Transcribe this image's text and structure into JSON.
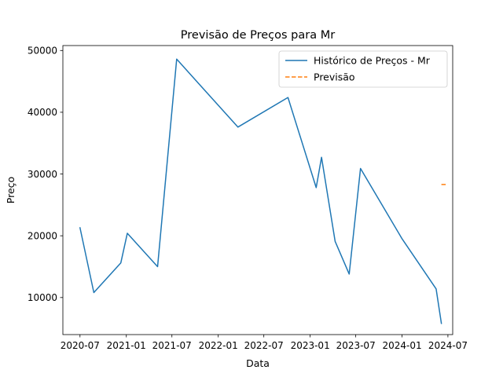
{
  "chart_data": {
    "type": "line",
    "title": "Previsão de Preços para Mr",
    "xlabel": "Data",
    "ylabel": "Preço",
    "xlim": [
      "2020-04-24",
      "2024-07-20"
    ],
    "ylim": [
      4000,
      50800
    ],
    "x_ticks": [
      "2020-07",
      "2021-01",
      "2021-07",
      "2022-01",
      "2022-07",
      "2023-01",
      "2023-07",
      "2024-01",
      "2024-07"
    ],
    "y_ticks": [
      10000,
      20000,
      30000,
      40000,
      50000
    ],
    "legend_position": "top-right",
    "grid": false,
    "series": [
      {
        "name": "Histórico de Preços - Mr",
        "color": "#1f77b4",
        "style": "solid",
        "points": [
          {
            "x": "2020-07-01",
            "y": 21300
          },
          {
            "x": "2020-08-25",
            "y": 10800
          },
          {
            "x": "2020-12-10",
            "y": 15600
          },
          {
            "x": "2021-01-05",
            "y": 20400
          },
          {
            "x": "2021-05-05",
            "y": 15000
          },
          {
            "x": "2021-07-20",
            "y": 48600
          },
          {
            "x": "2022-03-20",
            "y": 37600
          },
          {
            "x": "2022-10-05",
            "y": 42400
          },
          {
            "x": "2023-01-25",
            "y": 27800
          },
          {
            "x": "2023-02-15",
            "y": 32700
          },
          {
            "x": "2023-04-10",
            "y": 19100
          },
          {
            "x": "2023-06-05",
            "y": 13800
          },
          {
            "x": "2023-07-20",
            "y": 30900
          },
          {
            "x": "2024-01-01",
            "y": 19500
          },
          {
            "x": "2024-05-15",
            "y": 11400
          },
          {
            "x": "2024-06-05",
            "y": 5800
          }
        ]
      },
      {
        "name": "Previsão",
        "color": "#ff7f0e",
        "style": "dashed",
        "points": [
          {
            "x": "2024-06-05",
            "y": 28300
          },
          {
            "x": "2024-06-30",
            "y": 28300
          }
        ]
      }
    ]
  }
}
